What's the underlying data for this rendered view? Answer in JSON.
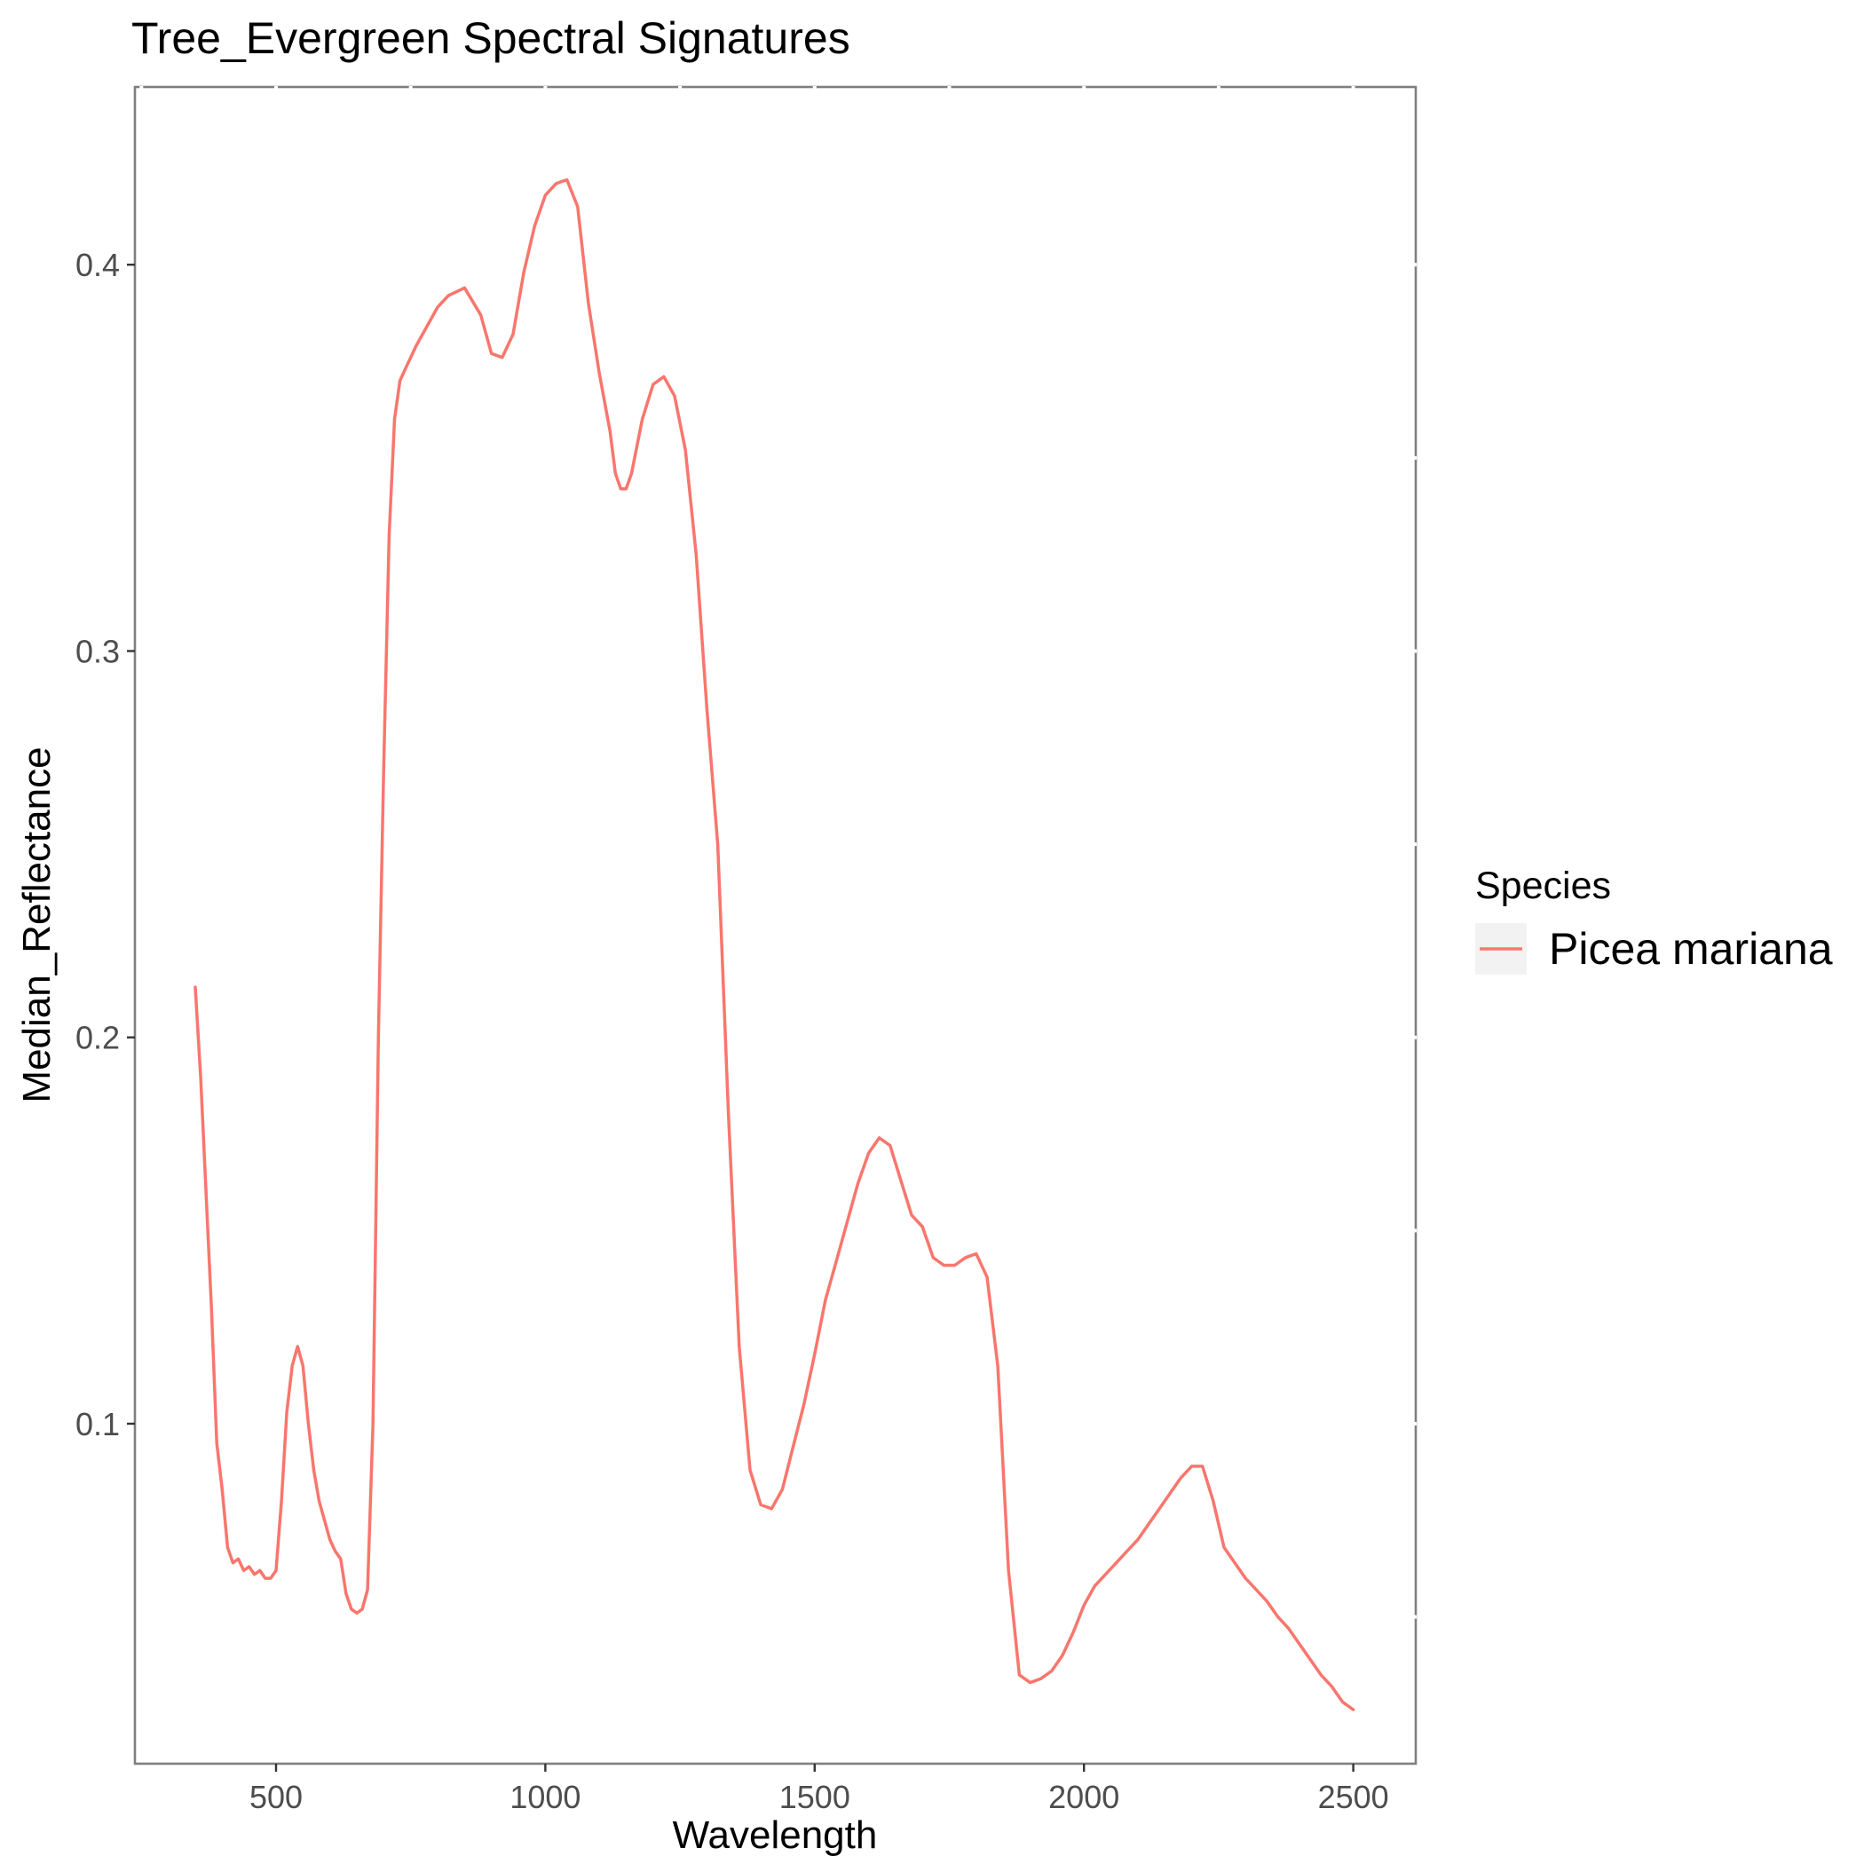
{
  "chart_data": {
    "type": "line",
    "title": "Tree_Evergreen Spectral Signatures",
    "xlabel": "Wavelength",
    "ylabel": "Median_Reflectance",
    "xlim": [
      238,
      2616
    ],
    "ylim": [
      0.012,
      0.446
    ],
    "x_ticks": [
      500,
      1000,
      1500,
      2000,
      2500
    ],
    "x_tick_labels": [
      "500",
      "1000",
      "1500",
      "2000",
      "2500"
    ],
    "y_ticks": [
      0.1,
      0.2,
      0.3,
      0.4
    ],
    "y_tick_labels": [
      "0.1",
      "0.2",
      "0.3",
      "0.4"
    ],
    "grid": false,
    "legend": {
      "title": "Species",
      "placement": "right",
      "entries": [
        "Picea mariana"
      ]
    },
    "series": [
      {
        "name": "Picea mariana",
        "color": "#F8766D",
        "x": [
          350,
          360,
          370,
          380,
          390,
          400,
          410,
          420,
          430,
          440,
          450,
          460,
          470,
          480,
          490,
          500,
          510,
          520,
          530,
          540,
          550,
          560,
          570,
          580,
          590,
          600,
          610,
          620,
          630,
          640,
          650,
          660,
          670,
          680,
          690,
          700,
          710,
          720,
          730,
          740,
          750,
          760,
          780,
          800,
          820,
          850,
          880,
          900,
          920,
          940,
          960,
          980,
          1000,
          1020,
          1040,
          1060,
          1080,
          1100,
          1120,
          1130,
          1140,
          1150,
          1160,
          1180,
          1200,
          1220,
          1240,
          1260,
          1280,
          1300,
          1320,
          1340,
          1360,
          1380,
          1400,
          1420,
          1440,
          1460,
          1480,
          1500,
          1520,
          1540,
          1560,
          1580,
          1600,
          1620,
          1640,
          1660,
          1680,
          1700,
          1720,
          1740,
          1760,
          1780,
          1800,
          1820,
          1840,
          1860,
          1880,
          1900,
          1920,
          1940,
          1960,
          1980,
          2000,
          2020,
          2040,
          2060,
          2080,
          2100,
          2120,
          2140,
          2160,
          2180,
          2200,
          2220,
          2240,
          2260,
          2280,
          2300,
          2320,
          2340,
          2360,
          2380,
          2400,
          2420,
          2440,
          2460,
          2480,
          2500
        ],
        "y": [
          0.213,
          0.19,
          0.16,
          0.13,
          0.095,
          0.083,
          0.068,
          0.064,
          0.065,
          0.062,
          0.063,
          0.061,
          0.062,
          0.06,
          0.06,
          0.062,
          0.08,
          0.103,
          0.115,
          0.12,
          0.115,
          0.1,
          0.088,
          0.08,
          0.075,
          0.07,
          0.067,
          0.065,
          0.056,
          0.052,
          0.051,
          0.052,
          0.057,
          0.1,
          0.2,
          0.27,
          0.33,
          0.36,
          0.37,
          0.373,
          0.376,
          0.379,
          0.384,
          0.389,
          0.392,
          0.394,
          0.387,
          0.377,
          0.376,
          0.382,
          0.398,
          0.41,
          0.418,
          0.421,
          0.422,
          0.415,
          0.39,
          0.372,
          0.357,
          0.346,
          0.342,
          0.342,
          0.346,
          0.36,
          0.369,
          0.371,
          0.366,
          0.352,
          0.325,
          0.285,
          0.25,
          0.18,
          0.12,
          0.088,
          0.079,
          0.078,
          0.083,
          0.094,
          0.105,
          0.118,
          0.132,
          0.142,
          0.152,
          0.162,
          0.17,
          0.174,
          0.172,
          0.163,
          0.154,
          0.151,
          0.143,
          0.141,
          0.141,
          0.143,
          0.144,
          0.138,
          0.115,
          0.062,
          0.035,
          0.033,
          0.034,
          0.036,
          0.04,
          0.046,
          0.053,
          0.058,
          0.061,
          0.064,
          0.067,
          0.07,
          0.074,
          0.078,
          0.082,
          0.086,
          0.089,
          0.089,
          0.08,
          0.068,
          0.064,
          0.06,
          0.057,
          0.054,
          0.05,
          0.047,
          0.043,
          0.039,
          0.035,
          0.032,
          0.028,
          0.026
        ]
      }
    ]
  }
}
